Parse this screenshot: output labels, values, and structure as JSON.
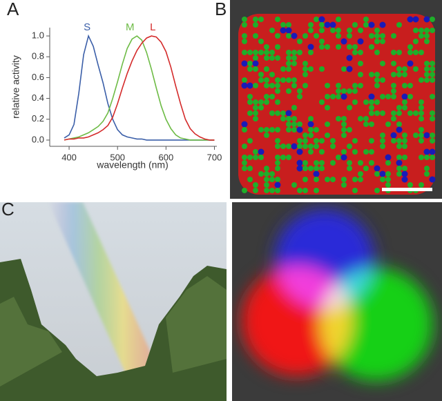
{
  "panel_labels": [
    "A",
    "B",
    "C"
  ],
  "chart_data": {
    "type": "line",
    "xlabel": "wavelength (nm)",
    "ylabel": "relative activity",
    "x": [
      390,
      400,
      410,
      420,
      430,
      440,
      450,
      460,
      470,
      480,
      490,
      500,
      510,
      520,
      530,
      540,
      550,
      560,
      570,
      580,
      590,
      600,
      610,
      620,
      630,
      640,
      650,
      660,
      670,
      680,
      690,
      700
    ],
    "series": [
      {
        "name": "S",
        "color": "#3a5ea8",
        "values": [
          0.02,
          0.05,
          0.15,
          0.45,
          0.82,
          1.0,
          0.9,
          0.72,
          0.55,
          0.35,
          0.2,
          0.1,
          0.05,
          0.03,
          0.02,
          0.01,
          0.01,
          0,
          0,
          0,
          0,
          0,
          0,
          0,
          0,
          0,
          0,
          0,
          0,
          0,
          0,
          0
        ]
      },
      {
        "name": "M",
        "color": "#6dbb45",
        "values": [
          0,
          0.01,
          0.02,
          0.03,
          0.05,
          0.07,
          0.1,
          0.13,
          0.18,
          0.26,
          0.4,
          0.56,
          0.73,
          0.88,
          0.97,
          1.0,
          0.96,
          0.84,
          0.68,
          0.5,
          0.33,
          0.2,
          0.11,
          0.05,
          0.02,
          0.01,
          0,
          0,
          0,
          0,
          0,
          0
        ]
      },
      {
        "name": "L",
        "color": "#d42a2a",
        "values": [
          0,
          0.01,
          0.01,
          0.02,
          0.02,
          0.03,
          0.05,
          0.07,
          0.1,
          0.14,
          0.22,
          0.35,
          0.5,
          0.64,
          0.76,
          0.86,
          0.93,
          0.98,
          1.0,
          0.99,
          0.94,
          0.85,
          0.7,
          0.52,
          0.35,
          0.2,
          0.11,
          0.06,
          0.03,
          0.01,
          0,
          0
        ]
      }
    ],
    "xlim": [
      360,
      705
    ],
    "xticks": [
      400,
      500,
      600,
      700
    ],
    "ylim": [
      -0.06,
      1.08
    ],
    "yticks": [
      {
        "value": 0,
        "label": "0.0"
      },
      {
        "value": 0.2,
        "label": "0.2"
      },
      {
        "value": 0.4,
        "label": "0.4"
      },
      {
        "value": 0.6,
        "label": "0.6"
      },
      {
        "value": 0.8,
        "label": "0.8"
      },
      {
        "value": 1,
        "label": "1.0"
      }
    ]
  }
}
